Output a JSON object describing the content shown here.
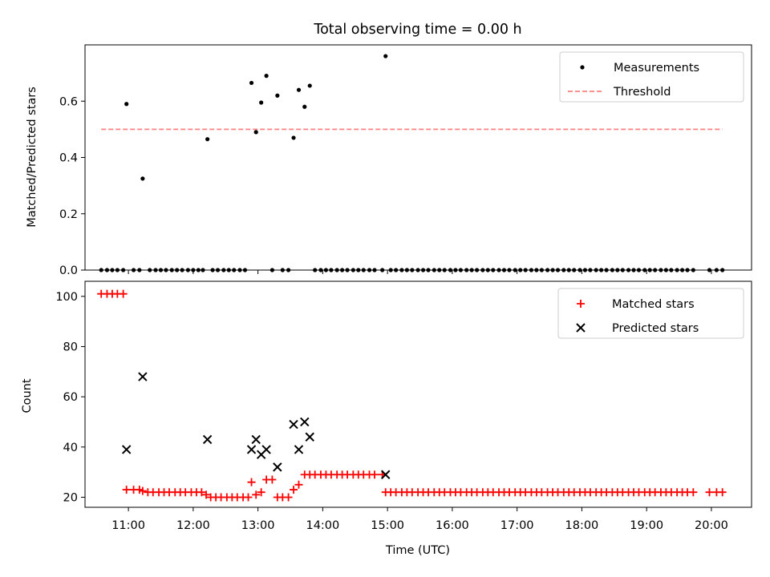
{
  "figure": {
    "title": "Total observing time = 0.00 h"
  },
  "chart_data": [
    {
      "type": "scatter",
      "ylabel": "Matched/Predicted stars",
      "ylim": [
        0,
        0.8
      ],
      "yticks": [
        0.0,
        0.2,
        0.4,
        0.6
      ],
      "ytick_labels": [
        "0.0",
        "0.2",
        "0.4",
        "0.6"
      ],
      "xlim_hours": [
        10.33,
        20.62
      ],
      "legend": {
        "placement": "top-right"
      },
      "threshold": {
        "name": "Threshold",
        "value": 0.5,
        "x_range_hours": [
          10.58,
          20.17
        ],
        "color": "#ff8080"
      },
      "series": [
        {
          "name": "Measurements",
          "color": "#000000",
          "points": [
            [
              10.58,
              0
            ],
            [
              10.67,
              0
            ],
            [
              10.75,
              0
            ],
            [
              10.83,
              0
            ],
            [
              10.92,
              0
            ],
            [
              10.97,
              0.59
            ],
            [
              11.08,
              0
            ],
            [
              11.17,
              0
            ],
            [
              11.22,
              0.325
            ],
            [
              11.33,
              0
            ],
            [
              11.42,
              0
            ],
            [
              11.5,
              0
            ],
            [
              11.58,
              0
            ],
            [
              11.67,
              0
            ],
            [
              11.75,
              0
            ],
            [
              11.83,
              0
            ],
            [
              11.92,
              0
            ],
            [
              12.0,
              0
            ],
            [
              12.08,
              0
            ],
            [
              12.15,
              0
            ],
            [
              12.22,
              0.465
            ],
            [
              12.3,
              0
            ],
            [
              12.38,
              0
            ],
            [
              12.47,
              0
            ],
            [
              12.55,
              0
            ],
            [
              12.63,
              0
            ],
            [
              12.72,
              0
            ],
            [
              12.8,
              0
            ],
            [
              12.9,
              0.665
            ],
            [
              12.97,
              0.49
            ],
            [
              13.05,
              0.595
            ],
            [
              13.13,
              0.69
            ],
            [
              13.3,
              0.62
            ],
            [
              13.55,
              0.47
            ],
            [
              13.63,
              0.64
            ],
            [
              13.72,
              0.58
            ],
            [
              13.8,
              0.655
            ],
            [
              13.22,
              0
            ],
            [
              13.38,
              0
            ],
            [
              13.47,
              0
            ],
            [
              13.88,
              0
            ],
            [
              13.97,
              0
            ],
            [
              14.05,
              0
            ],
            [
              14.13,
              0
            ],
            [
              14.22,
              0
            ],
            [
              14.3,
              0
            ],
            [
              14.38,
              0
            ],
            [
              14.47,
              0
            ],
            [
              14.55,
              0
            ],
            [
              14.63,
              0
            ],
            [
              14.72,
              0
            ],
            [
              14.8,
              0
            ],
            [
              14.92,
              0
            ],
            [
              14.97,
              0.76
            ],
            [
              15.05,
              0
            ],
            [
              15.13,
              0
            ],
            [
              15.22,
              0
            ],
            [
              15.3,
              0
            ],
            [
              15.38,
              0
            ],
            [
              15.47,
              0
            ],
            [
              15.55,
              0
            ],
            [
              15.63,
              0
            ],
            [
              15.72,
              0
            ],
            [
              15.8,
              0
            ],
            [
              15.88,
              0
            ],
            [
              15.97,
              0
            ],
            [
              16.05,
              0
            ],
            [
              16.13,
              0
            ],
            [
              16.22,
              0
            ],
            [
              16.3,
              0
            ],
            [
              16.38,
              0
            ],
            [
              16.47,
              0
            ],
            [
              16.55,
              0
            ],
            [
              16.63,
              0
            ],
            [
              16.72,
              0
            ],
            [
              16.8,
              0
            ],
            [
              16.88,
              0
            ],
            [
              16.97,
              0
            ],
            [
              17.05,
              0
            ],
            [
              17.13,
              0
            ],
            [
              17.22,
              0
            ],
            [
              17.3,
              0
            ],
            [
              17.38,
              0
            ],
            [
              17.47,
              0
            ],
            [
              17.55,
              0
            ],
            [
              17.63,
              0
            ],
            [
              17.72,
              0
            ],
            [
              17.8,
              0
            ],
            [
              17.88,
              0
            ],
            [
              17.97,
              0
            ],
            [
              18.05,
              0
            ],
            [
              18.13,
              0
            ],
            [
              18.22,
              0
            ],
            [
              18.3,
              0
            ],
            [
              18.38,
              0
            ],
            [
              18.47,
              0
            ],
            [
              18.55,
              0
            ],
            [
              18.63,
              0
            ],
            [
              18.72,
              0
            ],
            [
              18.8,
              0
            ],
            [
              18.88,
              0
            ],
            [
              18.97,
              0
            ],
            [
              19.05,
              0
            ],
            [
              19.13,
              0
            ],
            [
              19.22,
              0
            ],
            [
              19.3,
              0
            ],
            [
              19.38,
              0
            ],
            [
              19.47,
              0
            ],
            [
              19.55,
              0
            ],
            [
              19.63,
              0
            ],
            [
              19.72,
              0
            ],
            [
              19.97,
              0
            ],
            [
              20.08,
              0
            ],
            [
              20.17,
              0
            ]
          ]
        }
      ]
    },
    {
      "type": "scatter",
      "xlabel": "Time (UTC)",
      "ylabel": "Count",
      "ylim": [
        16,
        106
      ],
      "yticks": [
        20,
        40,
        60,
        80,
        100
      ],
      "ytick_labels": [
        "20",
        "40",
        "60",
        "80",
        "100"
      ],
      "xlim_hours": [
        10.33,
        20.62
      ],
      "xticks_hours": [
        11,
        12,
        13,
        14,
        15,
        16,
        17,
        18,
        19,
        20
      ],
      "xtick_labels": [
        "11:00",
        "12:00",
        "13:00",
        "14:00",
        "15:00",
        "16:00",
        "17:00",
        "18:00",
        "19:00",
        "20:00"
      ],
      "legend": {
        "placement": "top-right"
      },
      "series": [
        {
          "name": "Matched stars",
          "marker": "plus",
          "color": "#ff0000",
          "points": [
            [
              10.58,
              101
            ],
            [
              10.67,
              101
            ],
            [
              10.75,
              101
            ],
            [
              10.83,
              101
            ],
            [
              10.92,
              101
            ],
            [
              10.97,
              23
            ],
            [
              11.08,
              23
            ],
            [
              11.17,
              23
            ],
            [
              11.22,
              22.5
            ],
            [
              11.3,
              22
            ],
            [
              11.38,
              22
            ],
            [
              11.47,
              22
            ],
            [
              11.55,
              22
            ],
            [
              11.63,
              22
            ],
            [
              11.72,
              22
            ],
            [
              11.8,
              22
            ],
            [
              11.88,
              22
            ],
            [
              11.97,
              22
            ],
            [
              12.05,
              22
            ],
            [
              12.13,
              22
            ],
            [
              12.2,
              21
            ],
            [
              12.27,
              20
            ],
            [
              12.35,
              20
            ],
            [
              12.43,
              20
            ],
            [
              12.52,
              20
            ],
            [
              12.6,
              20
            ],
            [
              12.68,
              20
            ],
            [
              12.77,
              20
            ],
            [
              12.85,
              20
            ],
            [
              12.9,
              26
            ],
            [
              12.97,
              21
            ],
            [
              13.05,
              22
            ],
            [
              13.13,
              27
            ],
            [
              13.22,
              27
            ],
            [
              13.3,
              20
            ],
            [
              13.38,
              20
            ],
            [
              13.47,
              20
            ],
            [
              13.55,
              23
            ],
            [
              13.63,
              25
            ],
            [
              13.72,
              29
            ],
            [
              13.8,
              29
            ],
            [
              13.88,
              29
            ],
            [
              13.97,
              29
            ],
            [
              14.05,
              29
            ],
            [
              14.13,
              29
            ],
            [
              14.22,
              29
            ],
            [
              14.3,
              29
            ],
            [
              14.38,
              29
            ],
            [
              14.47,
              29
            ],
            [
              14.55,
              29
            ],
            [
              14.63,
              29
            ],
            [
              14.72,
              29
            ],
            [
              14.8,
              29
            ],
            [
              14.92,
              29
            ],
            [
              14.97,
              22
            ],
            [
              15.05,
              22
            ],
            [
              15.13,
              22
            ],
            [
              15.22,
              22
            ],
            [
              15.3,
              22
            ],
            [
              15.38,
              22
            ],
            [
              15.47,
              22
            ],
            [
              15.55,
              22
            ],
            [
              15.63,
              22
            ],
            [
              15.72,
              22
            ],
            [
              15.8,
              22
            ],
            [
              15.88,
              22
            ],
            [
              15.97,
              22
            ],
            [
              16.05,
              22
            ],
            [
              16.13,
              22
            ],
            [
              16.22,
              22
            ],
            [
              16.3,
              22
            ],
            [
              16.38,
              22
            ],
            [
              16.47,
              22
            ],
            [
              16.55,
              22
            ],
            [
              16.63,
              22
            ],
            [
              16.72,
              22
            ],
            [
              16.8,
              22
            ],
            [
              16.88,
              22
            ],
            [
              16.97,
              22
            ],
            [
              17.05,
              22
            ],
            [
              17.13,
              22
            ],
            [
              17.22,
              22
            ],
            [
              17.3,
              22
            ],
            [
              17.38,
              22
            ],
            [
              17.47,
              22
            ],
            [
              17.55,
              22
            ],
            [
              17.63,
              22
            ],
            [
              17.72,
              22
            ],
            [
              17.8,
              22
            ],
            [
              17.88,
              22
            ],
            [
              17.97,
              22
            ],
            [
              18.05,
              22
            ],
            [
              18.13,
              22
            ],
            [
              18.22,
              22
            ],
            [
              18.3,
              22
            ],
            [
              18.38,
              22
            ],
            [
              18.47,
              22
            ],
            [
              18.55,
              22
            ],
            [
              18.63,
              22
            ],
            [
              18.72,
              22
            ],
            [
              18.8,
              22
            ],
            [
              18.88,
              22
            ],
            [
              18.97,
              22
            ],
            [
              19.05,
              22
            ],
            [
              19.13,
              22
            ],
            [
              19.22,
              22
            ],
            [
              19.3,
              22
            ],
            [
              19.38,
              22
            ],
            [
              19.47,
              22
            ],
            [
              19.55,
              22
            ],
            [
              19.63,
              22
            ],
            [
              19.72,
              22
            ],
            [
              19.97,
              22
            ],
            [
              20.08,
              22
            ],
            [
              20.17,
              22
            ]
          ]
        },
        {
          "name": "Predicted stars",
          "marker": "x",
          "color": "#000000",
          "points": [
            [
              10.97,
              39
            ],
            [
              11.22,
              68
            ],
            [
              12.22,
              43
            ],
            [
              12.9,
              39
            ],
            [
              12.97,
              43
            ],
            [
              13.05,
              37
            ],
            [
              13.13,
              39
            ],
            [
              13.3,
              32
            ],
            [
              13.55,
              49
            ],
            [
              13.63,
              39
            ],
            [
              13.72,
              50
            ],
            [
              13.8,
              44
            ],
            [
              14.97,
              29
            ]
          ]
        }
      ]
    }
  ]
}
